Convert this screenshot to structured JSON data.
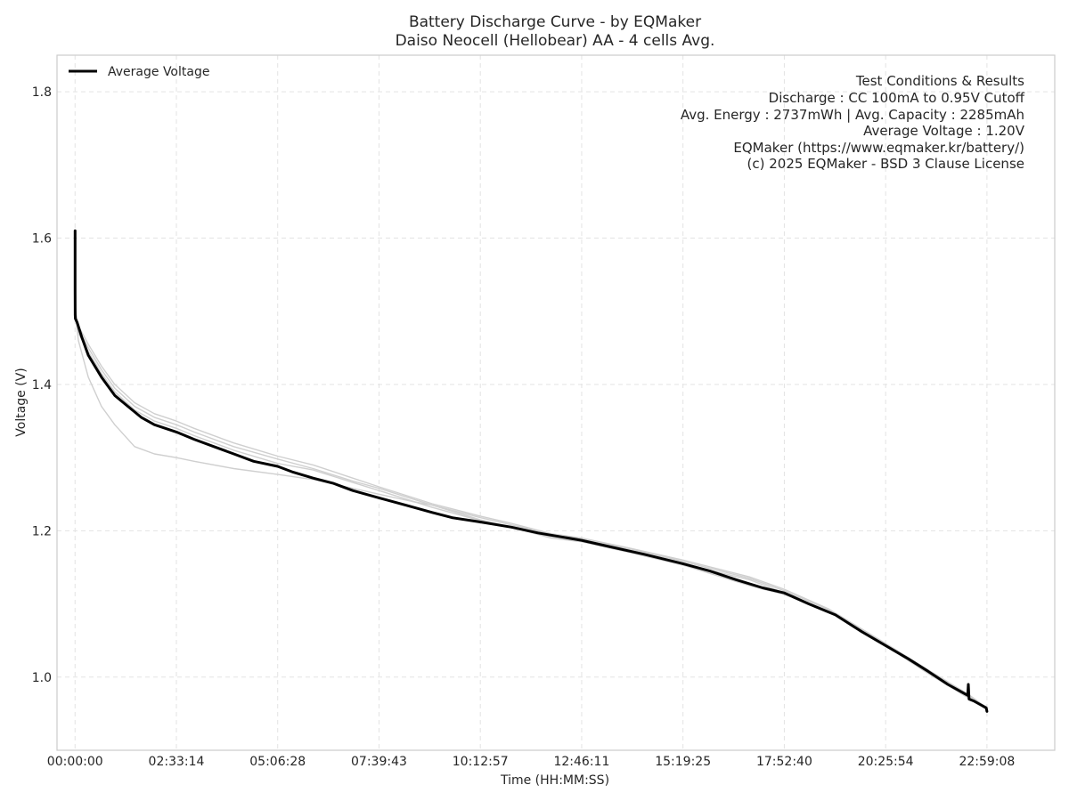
{
  "chart_data": {
    "type": "line",
    "title": "Battery Discharge Curve - by EQMaker",
    "subtitle": "Daiso Neocell (Hellobear) AA - 4 cells Avg.",
    "xlabel": "Time (HH:MM:SS)",
    "ylabel": "Voltage (V)",
    "x_unit": "HH:MM:SS",
    "xlim": [
      "-00:27:17",
      "24:41:40"
    ],
    "ylim": [
      0.9,
      1.85
    ],
    "x_ticks": [
      "00:00:00",
      "02:33:14",
      "05:06:28",
      "07:39:43",
      "10:12:57",
      "12:46:11",
      "15:19:25",
      "17:52:40",
      "20:25:54",
      "22:59:08"
    ],
    "y_ticks": [
      "1.0",
      "1.2",
      "1.4",
      "1.6",
      "1.8"
    ],
    "grid": true,
    "legend": {
      "position": "top-left",
      "entries": [
        "Average Voltage"
      ]
    },
    "annotation": {
      "position": "top-right",
      "lines": [
        "Test Conditions & Results",
        "Discharge : CC 100mA to 0.95V Cutoff",
        "Avg. Energy : 2737mWh | Avg. Capacity : 2285mAh",
        "Average Voltage : 1.20V",
        "EQMaker (https://www.eqmaker.kr/battery/)",
        "(c) 2025 EQMaker - BSD 3 Clause License"
      ]
    },
    "series": [
      {
        "name": "Average Voltage",
        "color": "#000000",
        "x": [
          "00:00:00",
          "00:00:05",
          "00:00:10",
          "00:00:30",
          "00:03:00",
          "00:10:00",
          "00:20:00",
          "00:40:00",
          "01:00:00",
          "01:20:00",
          "01:40:00",
          "02:00:00",
          "02:33:14",
          "03:00:00",
          "03:30:00",
          "04:00:00",
          "04:30:00",
          "05:06:28",
          "05:30:00",
          "06:00:00",
          "06:30:00",
          "07:00:00",
          "07:39:43",
          "08:20:00",
          "09:00:00",
          "09:30:00",
          "10:12:57",
          "11:00:00",
          "11:40:00",
          "12:46:11",
          "13:30:00",
          "14:20:00",
          "15:19:25",
          "16:00:00",
          "16:40:00",
          "17:20:00",
          "17:52:40",
          "18:30:00",
          "19:10:00",
          "19:50:00",
          "20:25:54",
          "21:00:00",
          "21:30:00",
          "22:00:00",
          "22:20:00",
          "22:30:00",
          "22:31:00",
          "22:32:00",
          "22:40:00",
          "22:50:00",
          "22:58:00",
          "22:59:08"
        ],
        "y": [
          1.61,
          1.53,
          1.495,
          1.49,
          1.485,
          1.465,
          1.44,
          1.41,
          1.385,
          1.37,
          1.355,
          1.345,
          1.335,
          1.325,
          1.315,
          1.305,
          1.295,
          1.288,
          1.28,
          1.272,
          1.265,
          1.255,
          1.245,
          1.235,
          1.225,
          1.218,
          1.212,
          1.205,
          1.197,
          1.187,
          1.178,
          1.168,
          1.155,
          1.145,
          1.133,
          1.122,
          1.115,
          1.1,
          1.085,
          1.062,
          1.043,
          1.025,
          1.008,
          0.99,
          0.98,
          0.975,
          0.99,
          0.97,
          0.967,
          0.962,
          0.958,
          0.953
        ]
      },
      {
        "name": "",
        "color": "#cfcfcf",
        "x": [
          "00:00:00",
          "00:05:00",
          "00:20:00",
          "00:40:00",
          "01:00:00",
          "01:30:00",
          "02:00:00",
          "02:33:14",
          "03:00:00",
          "04:00:00",
          "05:06:28",
          "06:00:00",
          "07:00:00",
          "07:39:43",
          "08:30:00",
          "09:00:00",
          "10:12:57",
          "11:00:00",
          "12:00:00",
          "12:46:11",
          "14:00:00",
          "15:19:25",
          "17:00:00",
          "17:52:40",
          "19:00:00",
          "20:25:54",
          "21:30:00",
          "22:30:00",
          "22:59:08"
        ],
        "y": [
          1.5,
          1.46,
          1.41,
          1.37,
          1.345,
          1.315,
          1.305,
          1.3,
          1.295,
          1.285,
          1.277,
          1.27,
          1.258,
          1.25,
          1.24,
          1.235,
          1.215,
          1.205,
          1.19,
          1.185,
          1.17,
          1.153,
          1.125,
          1.113,
          1.09,
          1.043,
          1.005,
          0.972,
          0.955
        ]
      },
      {
        "name": "",
        "color": "#cfcfcf",
        "x": [
          "00:00:00",
          "00:05:00",
          "00:20:00",
          "00:40:00",
          "01:00:00",
          "01:30:00",
          "02:00:00",
          "02:33:14",
          "03:00:00",
          "04:00:00",
          "05:06:28",
          "06:00:00",
          "07:00:00",
          "07:39:43",
          "09:00:00",
          "10:12:57",
          "11:00:00",
          "12:00:00",
          "12:46:11",
          "14:00:00",
          "15:19:25",
          "17:00:00",
          "17:52:40",
          "19:00:00",
          "20:25:54",
          "21:30:00",
          "22:30:00",
          "22:59:08"
        ],
        "y": [
          1.51,
          1.475,
          1.45,
          1.42,
          1.395,
          1.37,
          1.355,
          1.345,
          1.335,
          1.315,
          1.298,
          1.285,
          1.268,
          1.258,
          1.235,
          1.218,
          1.208,
          1.195,
          1.188,
          1.175,
          1.158,
          1.135,
          1.118,
          1.092,
          1.045,
          1.008,
          0.975,
          0.957
        ]
      },
      {
        "name": "",
        "color": "#cfcfcf",
        "x": [
          "00:00:00",
          "00:05:00",
          "00:20:00",
          "00:40:00",
          "01:00:00",
          "01:30:00",
          "02:00:00",
          "02:33:14",
          "03:00:00",
          "04:00:00",
          "05:06:28",
          "06:00:00",
          "07:00:00",
          "07:39:43",
          "09:00:00",
          "10:12:57",
          "11:00:00",
          "12:00:00",
          "12:46:11",
          "14:00:00",
          "15:19:25",
          "17:00:00",
          "17:52:40",
          "19:00:00",
          "20:25:54",
          "21:30:00",
          "22:30:00",
          "22:59:08"
        ],
        "y": [
          1.5,
          1.48,
          1.455,
          1.425,
          1.4,
          1.375,
          1.36,
          1.35,
          1.34,
          1.32,
          1.302,
          1.29,
          1.272,
          1.26,
          1.237,
          1.22,
          1.21,
          1.196,
          1.19,
          1.176,
          1.16,
          1.137,
          1.12,
          1.093,
          1.046,
          1.01,
          0.977,
          0.958
        ]
      },
      {
        "name": "",
        "color": "#cfcfcf",
        "x": [
          "00:00:00",
          "00:05:00",
          "00:20:00",
          "00:40:00",
          "01:00:00",
          "01:30:00",
          "02:00:00",
          "02:33:14",
          "03:00:00",
          "04:00:00",
          "05:06:28",
          "06:00:00",
          "07:00:00",
          "07:39:43",
          "09:00:00",
          "10:12:57",
          "11:00:00",
          "12:00:00",
          "12:46:11",
          "14:00:00",
          "15:19:25",
          "17:00:00",
          "17:52:40",
          "19:00:00",
          "20:25:54",
          "21:30:00",
          "22:30:00",
          "22:59:08"
        ],
        "y": [
          1.5,
          1.47,
          1.445,
          1.415,
          1.39,
          1.365,
          1.35,
          1.34,
          1.33,
          1.31,
          1.292,
          1.283,
          1.266,
          1.255,
          1.232,
          1.214,
          1.205,
          1.192,
          1.186,
          1.172,
          1.155,
          1.133,
          1.115,
          1.09,
          1.044,
          1.007,
          0.974,
          0.956
        ]
      }
    ]
  }
}
